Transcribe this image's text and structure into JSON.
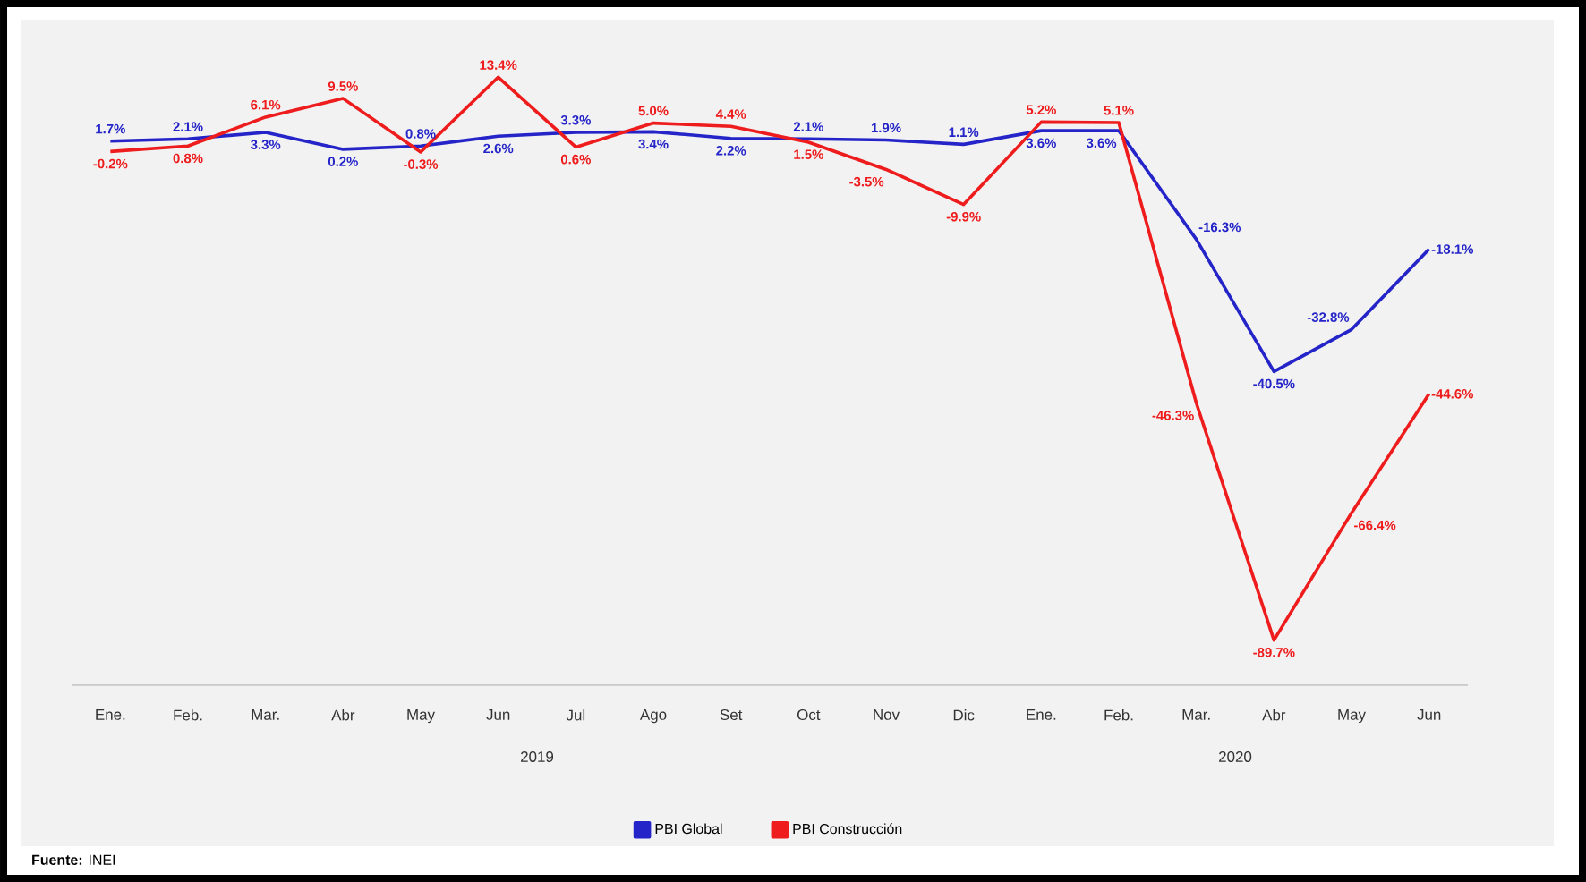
{
  "chart_data": {
    "type": "line",
    "categories": [
      "Ene.",
      "Feb.",
      "Mar.",
      "Abr",
      "May",
      "Jun",
      "Jul",
      "Ago",
      "Set",
      "Oct",
      "Nov",
      "Dic",
      "Ene.",
      "Feb.",
      "Mar.",
      "Abr",
      "May",
      "Jun"
    ],
    "series": [
      {
        "name": "PBI Global",
        "color": "#2424c8",
        "values": [
          1.7,
          2.1,
          3.3,
          0.2,
          0.8,
          2.6,
          3.3,
          3.4,
          2.2,
          2.1,
          1.9,
          1.1,
          3.6,
          3.6,
          -16.3,
          -40.5,
          -32.8,
          -18.1
        ],
        "value_labels": [
          "1.7%",
          "2.1%",
          "3.3%",
          "0.2%",
          "0.8%",
          "2.6%",
          "3.3%",
          "3.4%",
          "2.2%",
          "2.1%",
          "1.9%",
          "1.1%",
          "3.6%",
          "3.6%",
          "-16.3%",
          "-40.5%",
          "-32.8%",
          "-18.1%"
        ]
      },
      {
        "name": "PBI Construcción",
        "color": "#ee1c1c",
        "values": [
          -0.2,
          0.8,
          6.1,
          9.5,
          -0.3,
          13.4,
          0.6,
          5.0,
          4.4,
          1.5,
          -3.5,
          -9.9,
          5.2,
          5.1,
          -46.3,
          -89.7,
          -66.4,
          -44.6
        ],
        "value_labels": [
          "-0.2%",
          "0.8%",
          "6.1%",
          "9.5%",
          "-0.3%",
          "13.4%",
          "0.6%",
          "5.0%",
          "4.4%",
          "1.5%",
          "-3.5%",
          "-9.9%",
          "5.2%",
          "5.1%",
          "-46.3%",
          "-89.7%",
          "-66.4%",
          "-44.6%"
        ]
      }
    ],
    "tick_labels": "x",
    "grid": false,
    "legend": "bottom",
    "marker": "none",
    "line_style": "solid",
    "annotations": [
      "2019",
      "2020",
      "**Fuente:** INEI"
    ]
  }
}
